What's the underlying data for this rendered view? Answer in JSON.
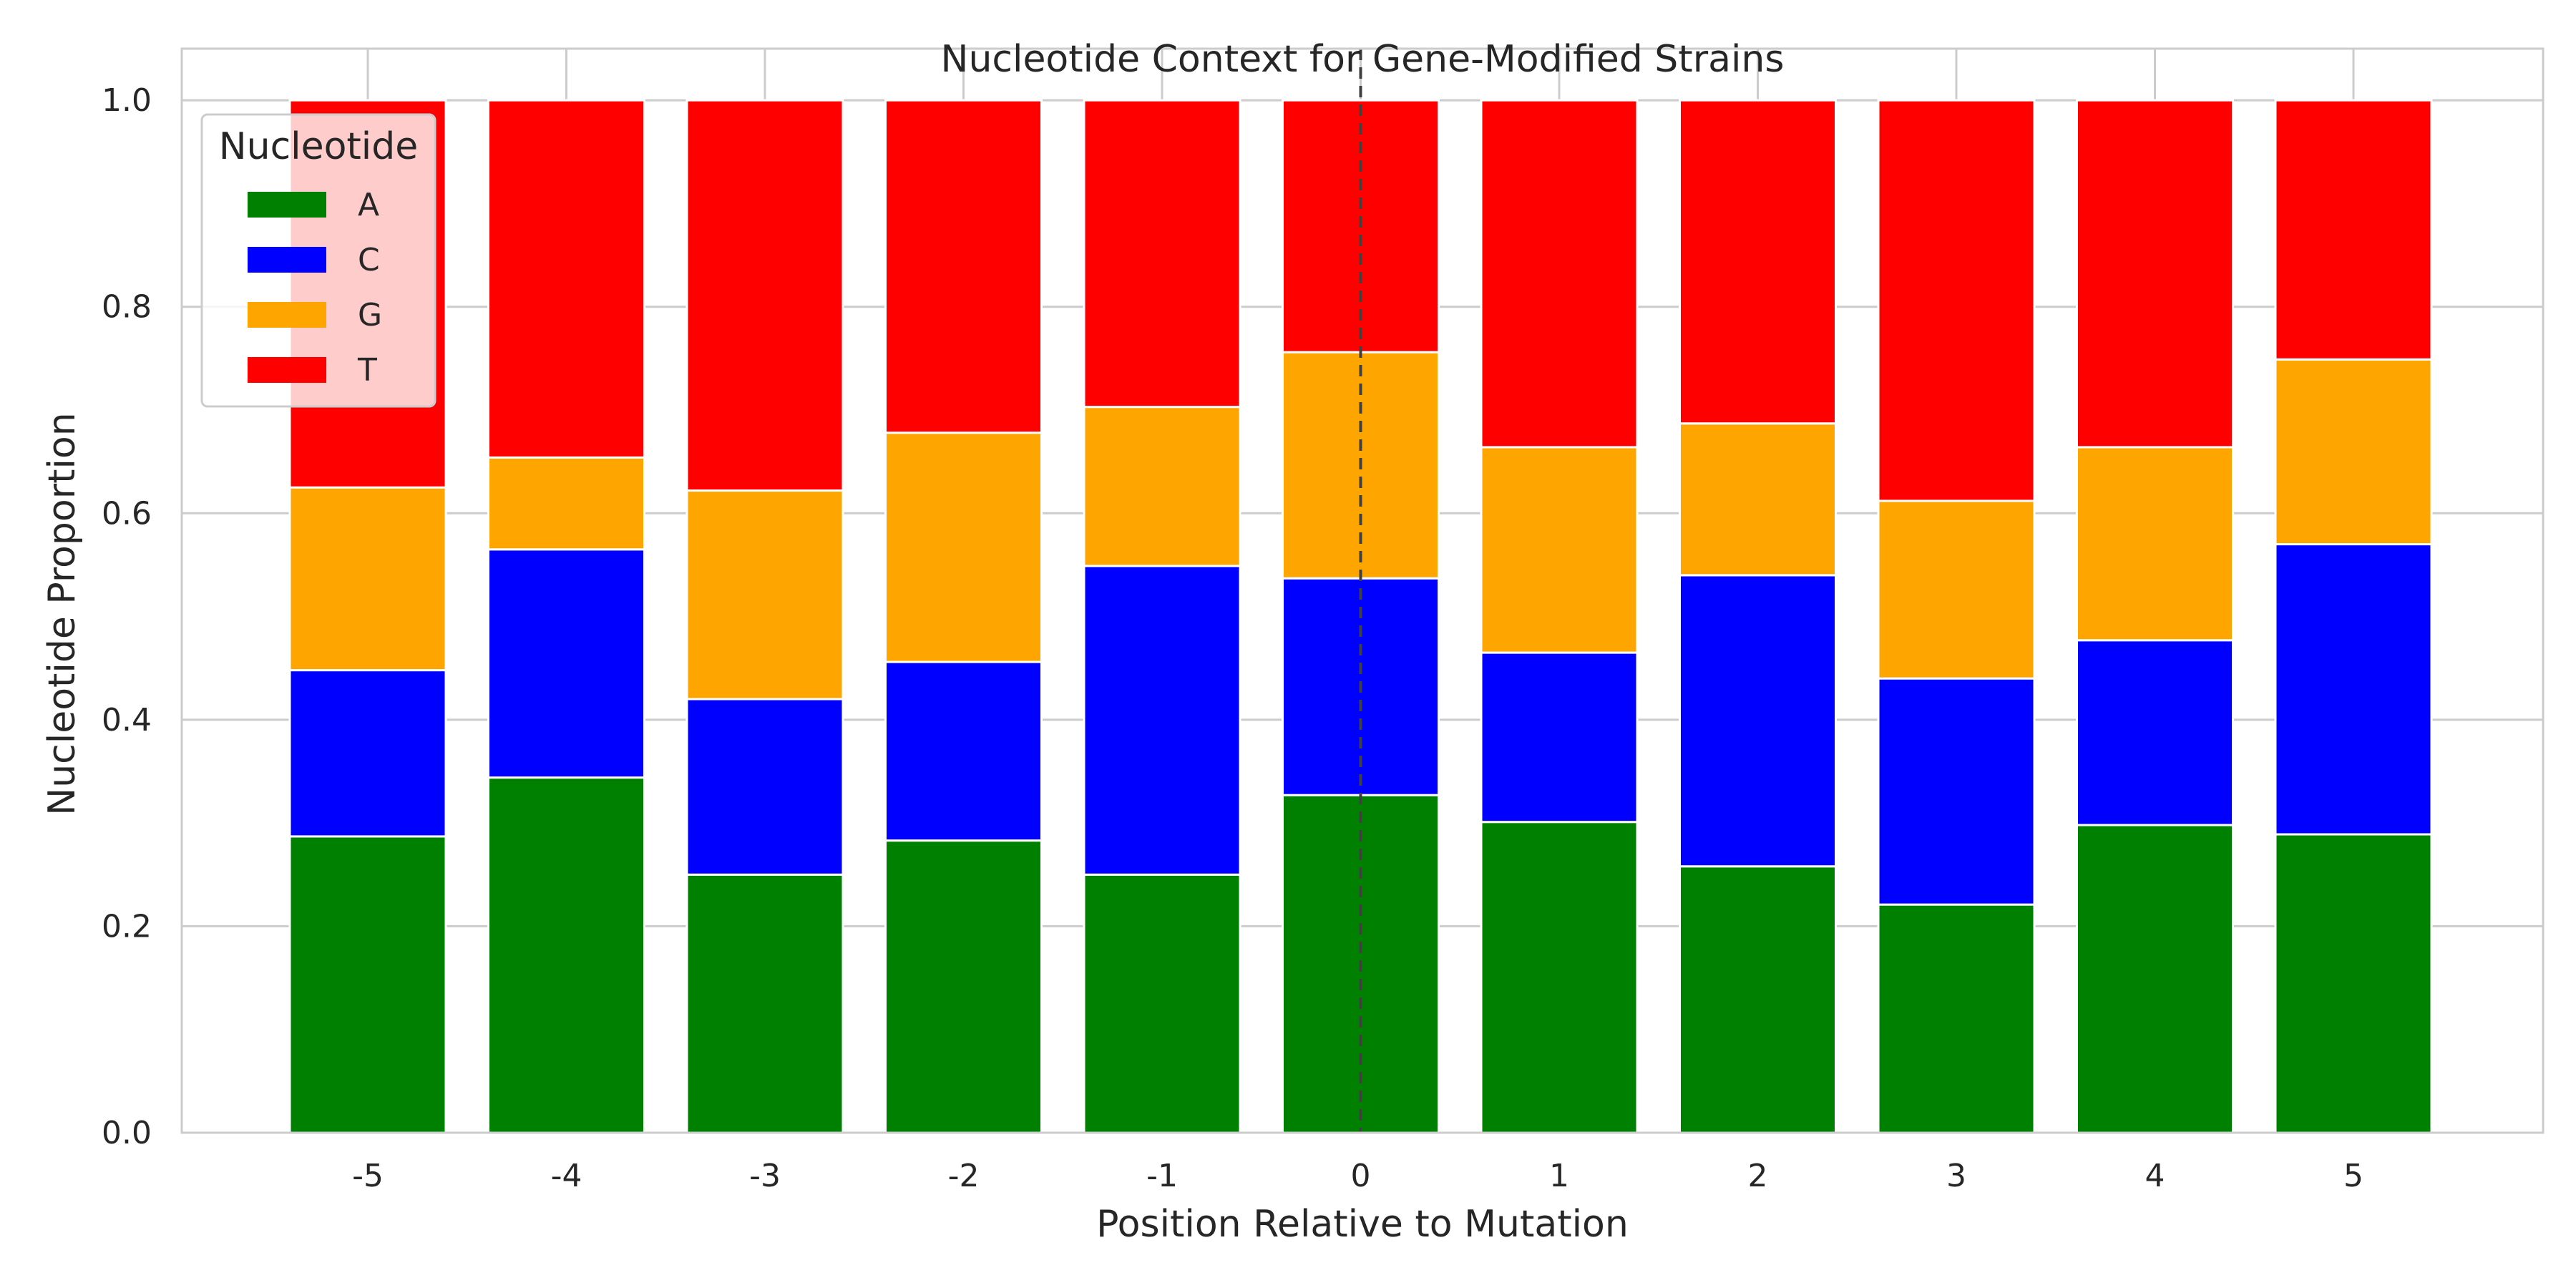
{
  "chart_data": {
    "type": "bar",
    "stacked": true,
    "title": "Nucleotide Context for Gene-Modified Strains",
    "xlabel": "Position Relative to Mutation",
    "ylabel": "Nucleotide Proportion",
    "categories": [
      "-5",
      "-4",
      "-3",
      "-2",
      "-1",
      "0",
      "1",
      "2",
      "3",
      "4",
      "5"
    ],
    "ylim": [
      0,
      1.05
    ],
    "yticks": [
      "0.0",
      "0.2",
      "0.4",
      "0.6",
      "0.8",
      "1.0"
    ],
    "grid": true,
    "legend": {
      "title": "Nucleotide",
      "placement": "top-left"
    },
    "reference_line": {
      "x": "0",
      "style": "dashed"
    },
    "series": [
      {
        "name": "A",
        "color": "#008000",
        "values": [
          0.287,
          0.344,
          0.25,
          0.283,
          0.25,
          0.327,
          0.301,
          0.258,
          0.221,
          0.298,
          0.289
        ]
      },
      {
        "name": "C",
        "color": "#0000ff",
        "values": [
          0.161,
          0.221,
          0.17,
          0.173,
          0.299,
          0.21,
          0.164,
          0.282,
          0.219,
          0.179,
          0.281
        ]
      },
      {
        "name": "G",
        "color": "#ffa500",
        "values": [
          0.177,
          0.089,
          0.202,
          0.222,
          0.154,
          0.219,
          0.199,
          0.147,
          0.172,
          0.187,
          0.179
        ]
      },
      {
        "name": "T",
        "color": "#ff0000",
        "values": [
          0.375,
          0.346,
          0.378,
          0.322,
          0.297,
          0.244,
          0.336,
          0.313,
          0.388,
          0.336,
          0.251
        ]
      }
    ]
  }
}
